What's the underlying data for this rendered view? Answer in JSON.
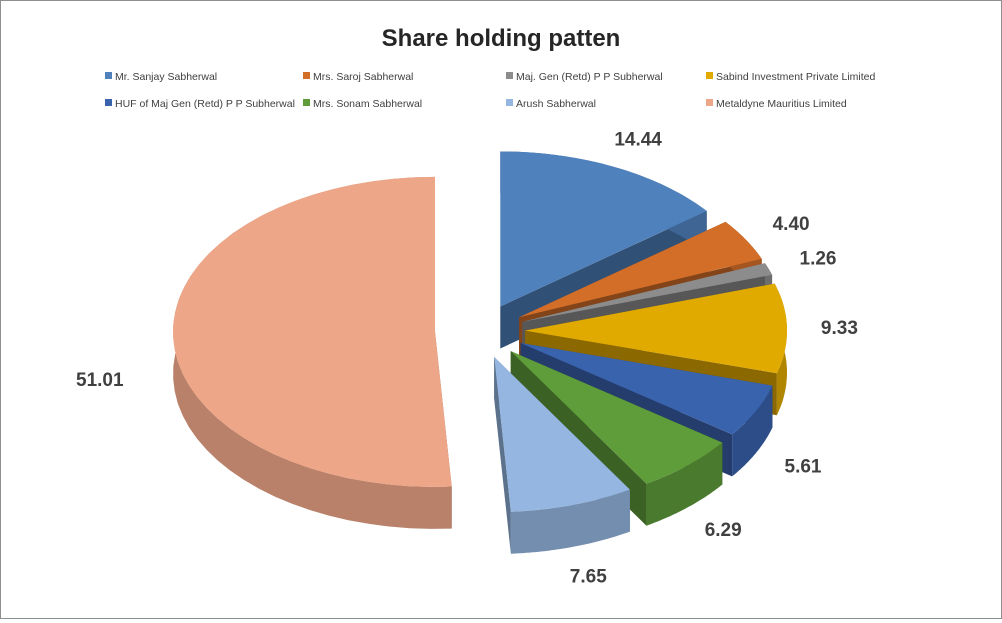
{
  "chart_data": {
    "type": "pie",
    "style": "3d-exploded",
    "title": "Share holding patten",
    "legend_position": "top",
    "series": [
      {
        "name": "Mr. Sanjay Sabherwal",
        "value": 14.44,
        "label": "14.44",
        "color": "#4F81BD"
      },
      {
        "name": "Mrs. Saroj Sabherwal",
        "value": 4.4,
        "label": "4.40",
        "color": "#D36E29"
      },
      {
        "name": "Maj. Gen (Retd) P P Subherwal",
        "value": 1.26,
        "label": "1.26",
        "color": "#8C8C8C"
      },
      {
        "name": "Sabind Investment Private Limited",
        "value": 9.33,
        "label": "9.33",
        "color": "#E1AA00"
      },
      {
        "name": "HUF of Maj Gen (Retd) P P Subherwal",
        "value": 5.61,
        "label": "5.61",
        "color": "#3A63AE"
      },
      {
        "name": "Mrs. Sonam Sabherwal",
        "value": 6.29,
        "label": "6.29",
        "color": "#5F9C3A"
      },
      {
        "name": "Arush Sabherwal",
        "value": 7.65,
        "label": "7.65",
        "color": "#94B6E0"
      },
      {
        "name": "Metaldyne Mauritius Limited",
        "value": 51.01,
        "label": "51.01",
        "color": "#EDA688"
      }
    ]
  }
}
